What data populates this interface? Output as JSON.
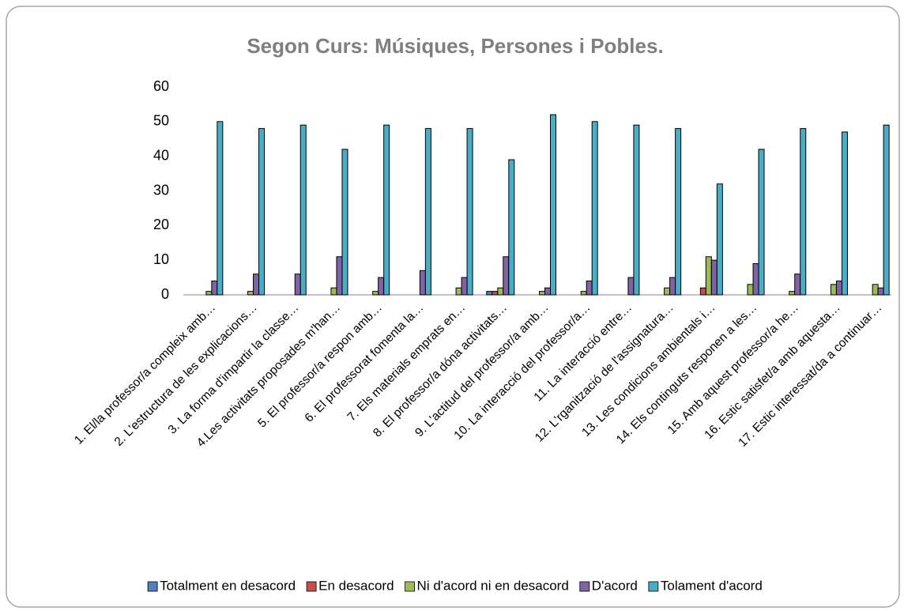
{
  "chart_data": {
    "type": "bar",
    "title": "Segon Curs: Músiques, Persones i Pobles.",
    "categories": [
      "1. El/la professor/a compleix amb…",
      "2. L'estructura de les explicacions…",
      "3. La forma d'impartir la classe…",
      "4.Les activitats proposades m'han…",
      "5. El professor/a respon amb…",
      "6. El professorat fomenta la…",
      "7. Els materials emprats en…",
      "8. El professor/a dóna activitats…",
      "9. L'actitud del professor/a amb…",
      "10. La interacció del professor/a…",
      "11. La interacció entre…",
      "12. L'rganització de l'assignatura…",
      "13. Les condicions ambientals i…",
      "14. Els continguts responen a les…",
      "15. Amb aquest professor/a he…",
      "16. Estic satisfet/a amb aquesta…",
      "17. Estic interessat/da a continuar…"
    ],
    "series": [
      {
        "name": "Totalment en desacord",
        "color": "#4f81bd",
        "values": [
          0,
          0,
          0,
          0,
          0,
          0,
          0,
          1,
          0,
          0,
          0,
          0,
          0,
          0,
          0,
          0,
          0
        ]
      },
      {
        "name": "En desacord",
        "color": "#c0504d",
        "values": [
          0,
          0,
          0,
          0,
          0,
          0,
          0,
          1,
          0,
          0,
          0,
          0,
          2,
          0,
          0,
          0,
          0
        ]
      },
      {
        "name": "Ni d'acord ni en desacord",
        "color": "#9bbb59",
        "values": [
          1,
          1,
          0,
          2,
          1,
          0,
          2,
          2,
          1,
          1,
          0,
          2,
          11,
          3,
          1,
          3,
          3
        ]
      },
      {
        "name": "D'acord",
        "color": "#8064a2",
        "values": [
          4,
          6,
          6,
          11,
          5,
          7,
          5,
          11,
          2,
          4,
          5,
          5,
          10,
          9,
          6,
          4,
          2
        ]
      },
      {
        "name": "Tolament d'acord",
        "color": "#4bacc6",
        "values": [
          50,
          48,
          49,
          42,
          49,
          48,
          48,
          39,
          52,
          50,
          49,
          48,
          32,
          42,
          48,
          47,
          49
        ]
      }
    ],
    "ylim": [
      0,
      60
    ],
    "yticks": [
      0,
      10,
      20,
      30,
      40,
      50,
      60
    ],
    "grid": false,
    "legend": "bottom"
  }
}
